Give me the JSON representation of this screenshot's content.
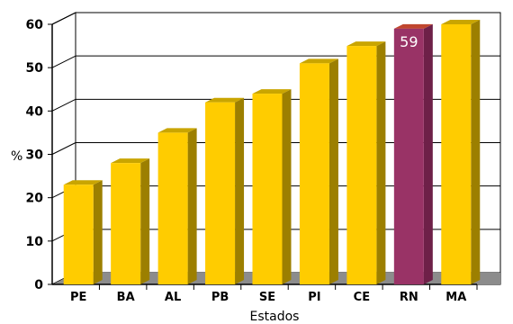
{
  "chart_data": {
    "type": "bar",
    "title": "",
    "xlabel": "Estados",
    "ylabel": "%",
    "categories": [
      "PE",
      "BA",
      "AL",
      "PB",
      "SE",
      "PI",
      "CE",
      "RN",
      "MA"
    ],
    "values": [
      23,
      28,
      35,
      42,
      44,
      51,
      55,
      59,
      60
    ],
    "ylim": [
      0,
      60
    ],
    "yticks": [
      0,
      10,
      20,
      30,
      40,
      50,
      60
    ],
    "grid": true,
    "highlight": {
      "category": "RN",
      "label": "59"
    },
    "colors": {
      "bar_front": "#FFCC00",
      "bar_top": "#C9A500",
      "bar_side": "#9C7F00",
      "highlight_front": "#993366",
      "highlight_top": "#C0462E",
      "highlight_side": "#6E2048",
      "floor": "#8C8C8C",
      "wall": "#ffffff",
      "grid": "#000000"
    }
  }
}
